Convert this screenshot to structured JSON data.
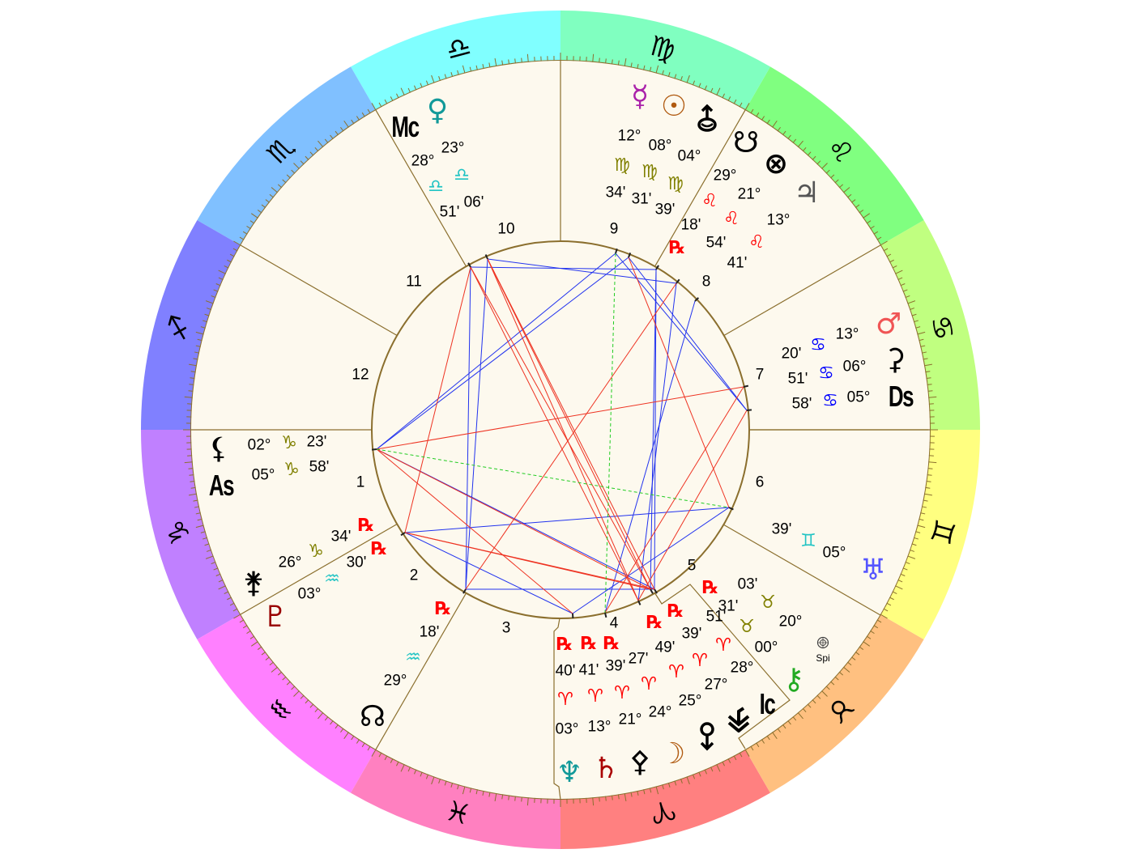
{
  "colors": {
    "background": "#fdf9ee",
    "ring_line": "#8b6f2e",
    "aspect_hard": "#ee3322",
    "aspect_soft": "#2233ee",
    "aspect_minor": "#22cc22",
    "retrograde": "#ff0000"
  },
  "zodiac": [
    {
      "sign": "Aries",
      "glyph": "♈︎",
      "color": "#ff8080"
    },
    {
      "sign": "Taurus",
      "glyph": "♉︎",
      "color": "#ffc080"
    },
    {
      "sign": "Gemini",
      "glyph": "♊︎",
      "color": "#ffff80"
    },
    {
      "sign": "Cancer",
      "glyph": "♋︎",
      "color": "#c0ff80"
    },
    {
      "sign": "Leo",
      "glyph": "♌︎",
      "color": "#80ff80"
    },
    {
      "sign": "Virgo",
      "glyph": "♍︎",
      "color": "#80ffc0"
    },
    {
      "sign": "Libra",
      "glyph": "♎︎",
      "color": "#80ffff"
    },
    {
      "sign": "Scorpio",
      "glyph": "♏︎",
      "color": "#80c0ff"
    },
    {
      "sign": "Sagittarius",
      "glyph": "♐︎",
      "color": "#8080ff"
    },
    {
      "sign": "Capricorn",
      "glyph": "♑︎",
      "color": "#c080ff"
    },
    {
      "sign": "Aquarius",
      "glyph": "♒︎",
      "color": "#ff80ff"
    },
    {
      "sign": "Pisces",
      "glyph": "♓︎",
      "color": "#ff80c0"
    }
  ],
  "houses": [
    "1",
    "2",
    "3",
    "4",
    "5",
    "6",
    "7",
    "8",
    "9",
    "10",
    "11",
    "12"
  ],
  "points": [
    {
      "id": "venus",
      "glyph": "♀",
      "color": "#119999",
      "degree": "23°",
      "sign": "♎︎",
      "sign_color": "#22c4c4",
      "minute": "06'",
      "rx": false
    },
    {
      "id": "mc",
      "label": "Mc",
      "color": "#000000",
      "degree": "28°",
      "sign": "♎︎",
      "sign_color": "#22c4c4",
      "minute": "51'",
      "rx": false
    },
    {
      "id": "mercury",
      "glyph": "☿",
      "color": "#aa22aa",
      "degree": "12°",
      "sign": "♍︎",
      "sign_color": "#808000",
      "minute": "34'",
      "rx": false
    },
    {
      "id": "sun",
      "glyph": "☉",
      "color": "#b05a10",
      "degree": "08°",
      "sign": "♍︎",
      "sign_color": "#808000",
      "minute": "31'",
      "rx": false
    },
    {
      "id": "arrow-up-point",
      "icon": "arrow-up-circle",
      "color": "#000000",
      "degree": "04°",
      "sign": "♍︎",
      "sign_color": "#808000",
      "minute": "39'",
      "rx": false
    },
    {
      "id": "south-node",
      "glyph": "☋",
      "color": "#000000",
      "degree": "29°",
      "sign": "♌︎",
      "sign_color": "#ff0000",
      "minute": "18'",
      "rx": true
    },
    {
      "id": "part-of-fortune",
      "glyph": "⊗",
      "color": "#000000",
      "degree": "21°",
      "sign": "♌︎",
      "sign_color": "#ff0000",
      "minute": "54'",
      "rx": false
    },
    {
      "id": "jupiter",
      "glyph": "♃",
      "color": "#555555",
      "degree": "13°",
      "sign": "♌︎",
      "sign_color": "#ff0000",
      "minute": "41'",
      "rx": false
    },
    {
      "id": "mars",
      "glyph": "♂",
      "color": "#f05555",
      "degree": "13°",
      "sign": "♋︎",
      "sign_color": "#0000ff",
      "minute": "20'",
      "rx": false
    },
    {
      "id": "ceres",
      "glyph": "⚳",
      "color": "#000000",
      "degree": "06°",
      "sign": "♋︎",
      "sign_color": "#0000ff",
      "minute": "51'",
      "rx": false
    },
    {
      "id": "ds",
      "label": "Ds",
      "color": "#000000",
      "degree": "05°",
      "sign": "♋︎",
      "sign_color": "#0000ff",
      "minute": "58'",
      "rx": false
    },
    {
      "id": "uranus",
      "glyph": "♅",
      "color": "#5555ff",
      "degree": "05°",
      "sign": "♊︎",
      "sign_color": "#22c4c4",
      "minute": "39'",
      "rx": false
    },
    {
      "id": "spica",
      "icon": "spi",
      "label": "Spi",
      "color": "#000000",
      "degree": "20°",
      "sign": "♉︎",
      "sign_color": "#808000",
      "minute": "03'",
      "rx": false
    },
    {
      "id": "chiron",
      "glyph": "⚷",
      "color": "#22aa22",
      "degree": "00°",
      "sign": "♉︎",
      "sign_color": "#808000",
      "minute": "31'",
      "rx": true
    },
    {
      "id": "ic",
      "label": "Ic",
      "color": "#000000",
      "degree": "28°",
      "sign": "♈︎",
      "sign_color": "#ff0000",
      "minute": "51'",
      "rx": false
    },
    {
      "id": "chevron-point",
      "icon": "chevrons",
      "color": "#000000",
      "degree": "27°",
      "sign": "♈︎",
      "sign_color": "#ff0000",
      "minute": "39'",
      "rx": true
    },
    {
      "id": "arrow-down-point",
      "icon": "arrow-down-circle",
      "color": "#000000",
      "degree": "25°",
      "sign": "♈︎",
      "sign_color": "#ff0000",
      "minute": "49'",
      "rx": true
    },
    {
      "id": "moon",
      "glyph": "☽",
      "color": "#b05a10",
      "degree": "24°",
      "sign": "♈︎",
      "sign_color": "#ff0000",
      "minute": "27'",
      "rx": false
    },
    {
      "id": "pallas",
      "glyph": "⚴",
      "color": "#000000",
      "degree": "21°",
      "sign": "♈︎",
      "sign_color": "#ff0000",
      "minute": "39'",
      "rx": true
    },
    {
      "id": "saturn",
      "glyph": "♄",
      "color": "#aa0000",
      "degree": "13°",
      "sign": "♈︎",
      "sign_color": "#ff0000",
      "minute": "41'",
      "rx": true
    },
    {
      "id": "neptune",
      "glyph": "♆",
      "color": "#119999",
      "degree": "03°",
      "sign": "♈︎",
      "sign_color": "#ff0000",
      "minute": "40'",
      "rx": true
    },
    {
      "id": "north-node",
      "glyph": "☊",
      "color": "#000000",
      "degree": "29°",
      "sign": "♒︎",
      "sign_color": "#22c4c4",
      "minute": "18'",
      "rx": true
    },
    {
      "id": "pluto",
      "glyph": "♇",
      "color": "#990000",
      "degree": "03°",
      "sign": "♒︎",
      "sign_color": "#22c4c4",
      "minute": "30'",
      "rx": true
    },
    {
      "id": "juno",
      "glyph": "⚵",
      "color": "#000000",
      "degree": "26°",
      "sign": "♑︎",
      "sign_color": "#808000",
      "minute": "34'",
      "rx": true
    },
    {
      "id": "as",
      "label": "As",
      "color": "#000000",
      "degree": "05°",
      "sign": "♑︎",
      "sign_color": "#808000",
      "minute": "58'",
      "rx": false
    },
    {
      "id": "lilith",
      "glyph": "⚸",
      "color": "#000000",
      "degree": "02°",
      "sign": "♑︎",
      "sign_color": "#808000",
      "minute": "23'",
      "rx": false
    }
  ],
  "rx_symbol": "℞"
}
